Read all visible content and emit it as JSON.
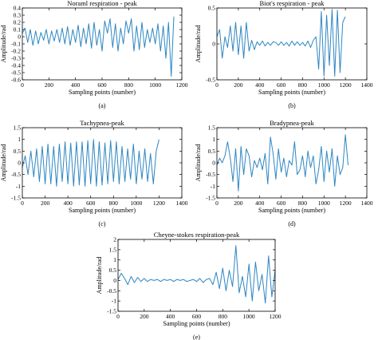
{
  "chart_data": [
    {
      "id": "a",
      "type": "line",
      "title": "Noraml respiration - peak",
      "xlabel": "Sampling points (number)",
      "ylabel": "Amplitude/rad",
      "caption": "(a)",
      "xlim": [
        0,
        1200
      ],
      "ylim": [
        -0.6,
        0.4
      ],
      "xticks": [
        0,
        200,
        400,
        600,
        800,
        1000,
        1200
      ],
      "yticks": [
        -0.6,
        -0.5,
        -0.4,
        -0.3,
        -0.2,
        -0.1,
        0,
        0.1,
        0.2,
        0.3,
        0.4
      ],
      "ytick_labels": [
        "-0.6",
        "-0.5",
        "-0.4",
        "-0.3",
        "-0.2",
        "-0.1",
        "0",
        "0.1",
        "0.2",
        "0.3",
        "0.4"
      ],
      "grid": false,
      "line_color": "#2e86c1",
      "series": [
        {
          "x": [
            0,
            20,
            40,
            60,
            80,
            100,
            120,
            140,
            160,
            180,
            200,
            220,
            240,
            260,
            280,
            300,
            320,
            340,
            360,
            380,
            400,
            420,
            440,
            460,
            480,
            500,
            520,
            540,
            560,
            580,
            600,
            620,
            640,
            660,
            680,
            700,
            720,
            740,
            760,
            780,
            800,
            820,
            840,
            860,
            880,
            900,
            920,
            940,
            960,
            980,
            1000,
            1020,
            1040,
            1060,
            1080,
            1100,
            1120,
            1140
          ],
          "y": [
            0.05,
            0.12,
            -0.08,
            0.1,
            -0.12,
            0.08,
            -0.1,
            0.06,
            -0.05,
            0.1,
            -0.1,
            0.08,
            -0.06,
            0.1,
            -0.08,
            0.12,
            -0.1,
            0.14,
            -0.12,
            0.1,
            -0.08,
            0.16,
            -0.14,
            0.12,
            -0.1,
            0.18,
            -0.16,
            0.2,
            -0.12,
            0.1,
            -0.2,
            0.22,
            0.05,
            0.25,
            -0.15,
            0.18,
            -0.2,
            0.12,
            -0.1,
            0.22,
            0.05,
            0.25,
            -0.2,
            0.15,
            -0.18,
            0.2,
            -0.15,
            0.1,
            -0.08,
            0.12,
            -0.1,
            0.18,
            -0.2,
            0.15,
            -0.3,
            0.2,
            -0.55,
            0.28
          ]
        }
      ]
    },
    {
      "id": "b",
      "type": "line",
      "title": "Biot's respiration - peak",
      "xlabel": "Sampling points (number)",
      "ylabel": "Amplitude/rad",
      "caption": "(b)",
      "xlim": [
        0,
        1400
      ],
      "ylim": [
        -0.5,
        0.5
      ],
      "xticks": [
        0,
        200,
        400,
        600,
        800,
        1000,
        1200,
        1400
      ],
      "yticks": [
        -0.5,
        0,
        0.5
      ],
      "ytick_labels": [
        "-0.5",
        "0",
        "0.5"
      ],
      "grid": false,
      "line_color": "#2e86c1",
      "series": [
        {
          "x": [
            0,
            25,
            50,
            75,
            100,
            125,
            150,
            175,
            200,
            225,
            250,
            275,
            300,
            325,
            350,
            375,
            400,
            425,
            450,
            475,
            500,
            525,
            550,
            575,
            600,
            625,
            650,
            675,
            700,
            725,
            750,
            775,
            800,
            825,
            850,
            875,
            900,
            925,
            950,
            975,
            1000,
            1025,
            1050,
            1075,
            1100,
            1125,
            1150,
            1175,
            1200
          ],
          "y": [
            0.1,
            0.2,
            -0.2,
            0.1,
            -0.05,
            0.25,
            -0.1,
            0.3,
            -0.15,
            0.25,
            -0.2,
            0.3,
            -0.1,
            0.05,
            -0.08,
            0.03,
            -0.02,
            0.04,
            -0.03,
            0.02,
            -0.02,
            0.03,
            0.02,
            -0.02,
            0.03,
            -0.02,
            0.02,
            -0.03,
            0.04,
            -0.02,
            0.03,
            -0.02,
            0.02,
            -0.03,
            0.04,
            -0.05,
            0.05,
            0.1,
            -0.35,
            0.45,
            -0.45,
            0.4,
            -0.3,
            0.48,
            -0.45,
            0.47,
            -0.4,
            0.3,
            0.38
          ]
        }
      ]
    },
    {
      "id": "c",
      "type": "line",
      "title": "Tachypnea-peak",
      "xlabel": "Sampling points (number)",
      "ylabel": "Amplitude/rad",
      "caption": "(c)",
      "xlim": [
        0,
        1400
      ],
      "ylim": [
        -1.5,
        1.5
      ],
      "xticks": [
        0,
        200,
        400,
        600,
        800,
        1000,
        1200,
        1400
      ],
      "yticks": [
        -1.5,
        -1,
        -0.5,
        0,
        0.5,
        1,
        1.5
      ],
      "ytick_labels": [
        "-1.5",
        "-1",
        "-0.5",
        "0",
        "0.5",
        "1",
        "1.5"
      ],
      "grid": false,
      "line_color": "#2e86c1",
      "series": [
        {
          "x": [
            0,
            25,
            50,
            75,
            100,
            125,
            150,
            175,
            200,
            225,
            250,
            275,
            300,
            325,
            350,
            375,
            400,
            425,
            450,
            475,
            500,
            525,
            550,
            575,
            600,
            625,
            650,
            675,
            700,
            725,
            750,
            775,
            800,
            825,
            850,
            875,
            900,
            925,
            950,
            975,
            1000,
            1025,
            1050,
            1075,
            1100,
            1125,
            1150,
            1175,
            1200
          ],
          "y": [
            -0.2,
            0.3,
            -0.5,
            0.5,
            -0.6,
            0.6,
            -0.8,
            0.7,
            -0.9,
            0.8,
            -0.9,
            0.7,
            -1.0,
            0.8,
            -0.8,
            0.9,
            -0.9,
            0.85,
            -1.0,
            0.9,
            -0.95,
            0.9,
            -1.0,
            0.95,
            -0.9,
            1.0,
            -1.0,
            0.9,
            -0.95,
            0.85,
            -0.9,
            0.95,
            -0.8,
            0.9,
            -0.9,
            0.7,
            -0.8,
            0.6,
            -0.7,
            0.8,
            -0.9,
            0.5,
            -0.7,
            0.6,
            -0.8,
            0.4,
            -0.9,
            0.5,
            1.0
          ]
        }
      ]
    },
    {
      "id": "d",
      "type": "line",
      "title": "Bradypnea-peak",
      "xlabel": "Sampling points (number)",
      "ylabel": "Amplitude/rad",
      "caption": "(d)",
      "xlim": [
        0,
        1400
      ],
      "ylim": [
        -1.5,
        1.5
      ],
      "xticks": [
        0,
        200,
        400,
        600,
        800,
        1000,
        1200,
        1400
      ],
      "yticks": [
        -1.5,
        -1,
        -0.5,
        0,
        0.5,
        1,
        1.5
      ],
      "ytick_labels": [
        "-1.5",
        "-1",
        "-0.5",
        "0",
        "0.5",
        "1",
        "1.5"
      ],
      "grid": false,
      "line_color": "#2e86c1",
      "series": [
        {
          "x": [
            0,
            25,
            50,
            75,
            100,
            125,
            150,
            175,
            200,
            225,
            250,
            275,
            300,
            325,
            350,
            375,
            400,
            425,
            450,
            475,
            500,
            525,
            550,
            575,
            600,
            625,
            650,
            675,
            700,
            725,
            750,
            775,
            800,
            825,
            850,
            875,
            900,
            925,
            950,
            975,
            1000,
            1025,
            1050,
            1075,
            1100,
            1125,
            1150,
            1175,
            1200,
            1225
          ],
          "y": [
            -0.1,
            0.2,
            0.0,
            0.3,
            0.9,
            0.2,
            -0.8,
            0.6,
            -1.2,
            0.7,
            -0.5,
            0.6,
            0.3,
            -0.6,
            0.1,
            -0.2,
            0.2,
            -0.3,
            0.4,
            -0.9,
            1.1,
            0.4,
            -0.7,
            0.6,
            -0.4,
            0.2,
            -0.6,
            0.1,
            -0.1,
            0.9,
            -0.5,
            -0.3,
            0.3,
            -0.6,
            0.5,
            -0.2,
            0.3,
            -0.9,
            -0.3,
            0.7,
            -0.8,
            0.5,
            -0.4,
            0.6,
            -1.0,
            0.3,
            -0.5,
            -0.2,
            1.2,
            -0.1
          ]
        }
      ]
    },
    {
      "id": "e",
      "type": "line",
      "title": "Cheyne-stokes respiration-peak",
      "xlabel": "Sampling points (number)",
      "ylabel": "Amplitude/rad",
      "caption": "(e)",
      "xlim": [
        0,
        1200
      ],
      "ylim": [
        -1.5,
        2
      ],
      "xticks": [
        0,
        200,
        400,
        600,
        800,
        1000,
        1200
      ],
      "yticks": [
        -1.5,
        -1,
        -0.5,
        0,
        0.5,
        1,
        1.5,
        2
      ],
      "ytick_labels": [
        "-1.5",
        "-1",
        "-0.5",
        "0",
        "0.5",
        "1",
        "1.5",
        "2"
      ],
      "grid": false,
      "line_color": "#2e86c1",
      "series": [
        {
          "x": [
            0,
            25,
            50,
            75,
            100,
            125,
            150,
            175,
            200,
            225,
            250,
            275,
            300,
            325,
            350,
            375,
            400,
            425,
            450,
            475,
            500,
            525,
            550,
            575,
            600,
            625,
            650,
            675,
            700,
            725,
            750,
            775,
            800,
            825,
            850,
            875,
            900,
            925,
            950,
            975,
            1000,
            1025,
            1050,
            1075,
            1100,
            1125,
            1150,
            1175,
            1200
          ],
          "y": [
            0.05,
            0.35,
            0.1,
            -0.2,
            0.2,
            -0.1,
            0.15,
            -0.05,
            0.1,
            -0.05,
            0.05,
            0.0,
            0.05,
            -0.05,
            0.05,
            0.0,
            0.05,
            -0.05,
            0.05,
            0.0,
            0.05,
            -0.05,
            0.0,
            0.05,
            -0.05,
            0.1,
            -0.1,
            0.05,
            0.1,
            -0.2,
            0.4,
            -0.4,
            0.6,
            -0.5,
            0.5,
            -0.3,
            1.7,
            -0.6,
            0.2,
            -0.8,
            0.8,
            -1.0,
            0.9,
            -0.5,
            0.3,
            -1.1,
            1.2,
            -0.8,
            0.5
          ]
        }
      ]
    }
  ]
}
